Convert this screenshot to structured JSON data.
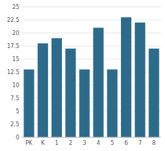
{
  "chart_data": {
    "type": "bar",
    "categories": [
      "PK",
      "K",
      "1",
      "2",
      "3",
      "4",
      "5",
      "6",
      "7",
      "8"
    ],
    "values": [
      13,
      18,
      19,
      17,
      13,
      21,
      13,
      23,
      22,
      17
    ],
    "color": "#2e6b8a",
    "ylim": [
      0,
      25
    ],
    "yticks": [
      0,
      2.5,
      5,
      7.5,
      10,
      12.5,
      15,
      17.5,
      20,
      22.5,
      25
    ],
    "grid": true
  }
}
